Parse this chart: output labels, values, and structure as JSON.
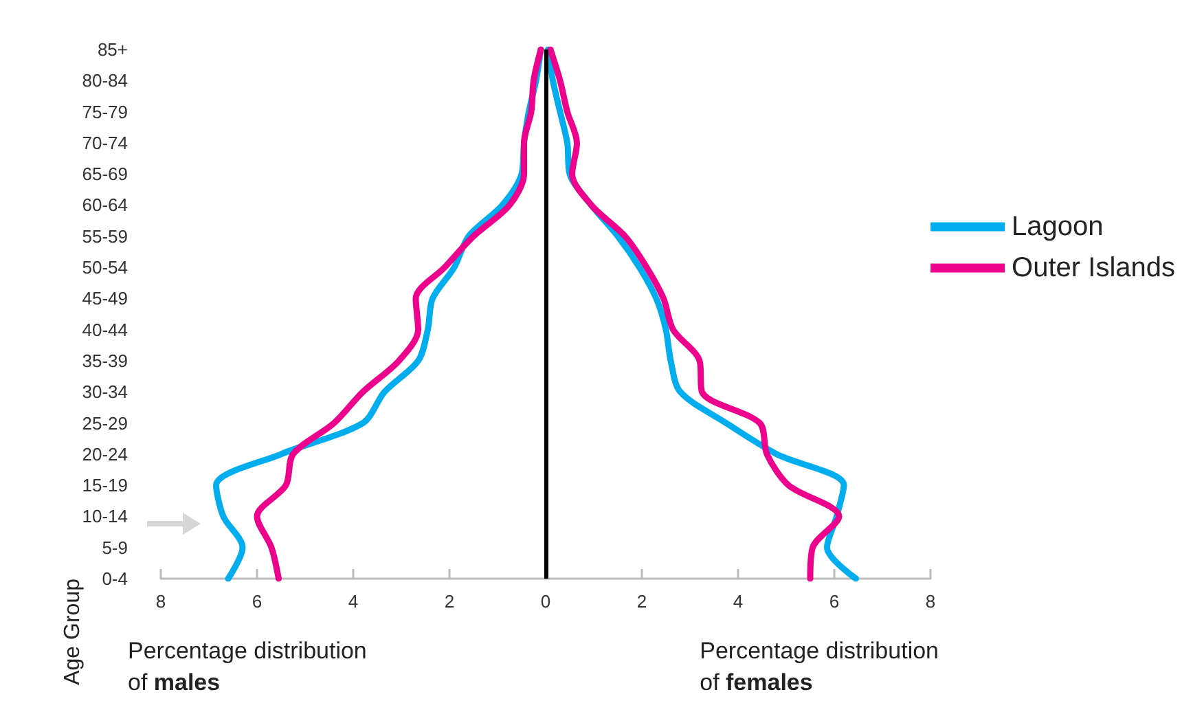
{
  "chart_data": {
    "type": "line",
    "orientation": "horizontal",
    "ylabel": "Age Group",
    "categories": [
      "85+",
      "80-84",
      "75-79",
      "70-74",
      "65-69",
      "60-64",
      "55-59",
      "50-54",
      "45-49",
      "40-44",
      "35-39",
      "30-34",
      "25-29",
      "20-24",
      "15-19",
      "10-14",
      "5-9",
      "0-4"
    ],
    "series": [
      {
        "color": "#00aeef",
        "values": [
          -0.1,
          -0.2,
          -0.35,
          -0.45,
          -0.5,
          -0.9,
          -1.6,
          -1.9,
          -2.35,
          -2.45,
          -2.65,
          -3.35,
          -3.8,
          -5.5,
          -6.85,
          -6.7,
          -6.3,
          -6.6
        ]
      },
      {
        "color": "#ec008c",
        "values": [
          -0.1,
          -0.25,
          -0.3,
          -0.45,
          -0.45,
          -0.75,
          -1.5,
          -2.1,
          -2.7,
          -2.65,
          -3.05,
          -3.8,
          -4.4,
          -5.25,
          -5.4,
          -6.0,
          -5.7,
          -5.55
        ]
      },
      {
        "name": "Lagoon",
        "color": "#00aeef",
        "values": [
          0.05,
          0.15,
          0.3,
          0.45,
          0.5,
          0.95,
          1.5,
          1.95,
          2.3,
          2.5,
          2.6,
          2.8,
          3.75,
          4.8,
          6.2,
          6.05,
          5.85,
          6.45
        ]
      },
      {
        "name": "Outer Islands",
        "color": "#ec008c",
        "values": [
          0.1,
          0.3,
          0.45,
          0.65,
          0.55,
          0.95,
          1.65,
          2.1,
          2.45,
          2.65,
          3.2,
          3.25,
          4.45,
          4.6,
          5.05,
          6.1,
          5.55,
          5.5
        ]
      }
    ],
    "xlim": [
      -8,
      8
    ],
    "xticks": [
      {
        "value": -8,
        "label": "8"
      },
      {
        "value": -6,
        "label": "6"
      },
      {
        "value": -4,
        "label": "4"
      },
      {
        "value": -2,
        "label": "2"
      },
      0,
      2,
      4,
      6,
      8
    ],
    "ref_lines": [
      {
        "axis": "x",
        "value": 0,
        "color": "#000000"
      }
    ],
    "annotations": [
      "Percentage distribution of males",
      "Percentage distribution of females"
    ],
    "legend": "right",
    "marker": "none",
    "grid": false
  }
}
